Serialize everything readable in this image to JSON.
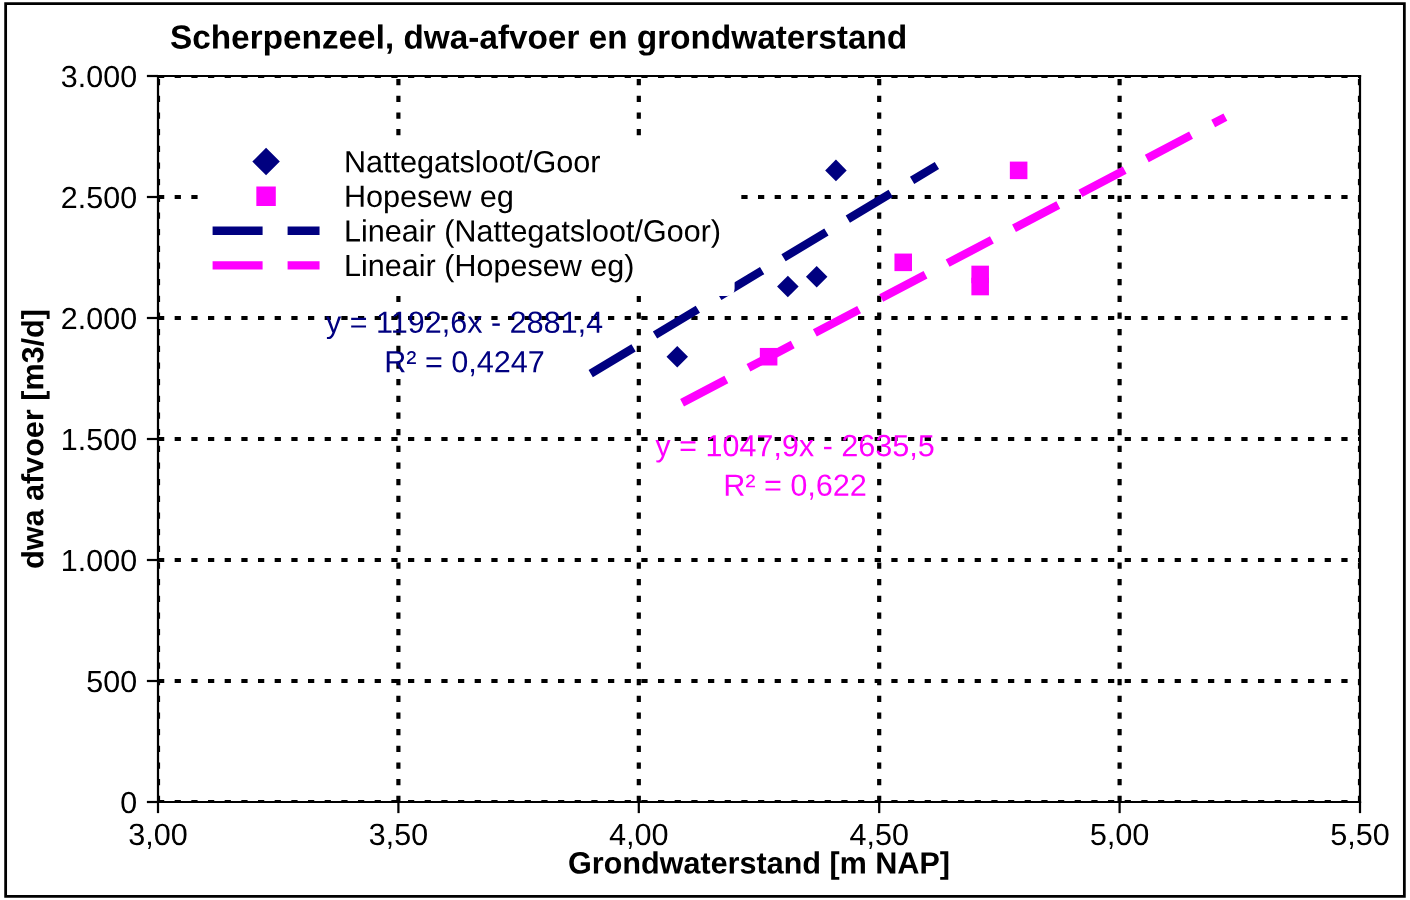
{
  "chart_data": {
    "type": "scatter",
    "title": "Scherpenzeel, dwa-afvoer en grondwaterstand",
    "xlabel": "Grondwaterstand [m NAP]",
    "ylabel": "dwa afvoer [m3/d]",
    "xlim": [
      3.0,
      5.5
    ],
    "xticks": [
      {
        "value": 3.0,
        "label": "3,00"
      },
      {
        "value": 3.5,
        "label": "3,50"
      },
      {
        "value": 4.0,
        "label": "4,00"
      },
      {
        "value": 4.5,
        "label": "4,50"
      },
      {
        "value": 5.0,
        "label": "5,00"
      },
      {
        "value": 5.5,
        "label": "5,50"
      }
    ],
    "ylim": [
      0,
      3000
    ],
    "yticks": [
      0,
      500,
      {
        "value": 1000,
        "label": "1.000"
      },
      {
        "value": 1500,
        "label": "1.500"
      },
      {
        "value": 2000,
        "label": "2.000"
      },
      {
        "value": 2500,
        "label": "2.500"
      },
      {
        "value": 3000,
        "label": "3.000"
      }
    ],
    "grid": true,
    "legend": "top left",
    "series": [
      {
        "name": "Nattegatsloot/Goor",
        "marker": "diamond",
        "color": "#000080",
        "x": [
          4.08,
          4.31,
          4.37,
          4.41
        ],
        "values": [
          1840,
          2130,
          2170,
          2610
        ]
      },
      {
        "name": "Hopesew eg",
        "marker": "square",
        "color": "#ff00ff",
        "x": [
          4.27,
          4.55,
          4.71,
          4.71,
          4.79
        ],
        "values": [
          1840,
          2230,
          2180,
          2130,
          2610
        ]
      },
      {
        "name": "Lineair (Nattegatsloot/Goor)",
        "type": "line",
        "line_style": "dashed",
        "color": "#000080",
        "x": [
          3.9,
          4.62
        ],
        "values": [
          1770,
          2630
        ]
      },
      {
        "name": "Lineair (Hopesew eg)",
        "type": "line",
        "line_style": "dashed",
        "color": "#ff00ff",
        "x": [
          4.09,
          5.22
        ],
        "values": [
          1650,
          2830
        ]
      }
    ],
    "annotations": [
      "y = 1192,6x - 2881,4\nR² = 0,4247",
      "y = 1047,9x - 2635,5\nR² = 0,622"
    ]
  }
}
